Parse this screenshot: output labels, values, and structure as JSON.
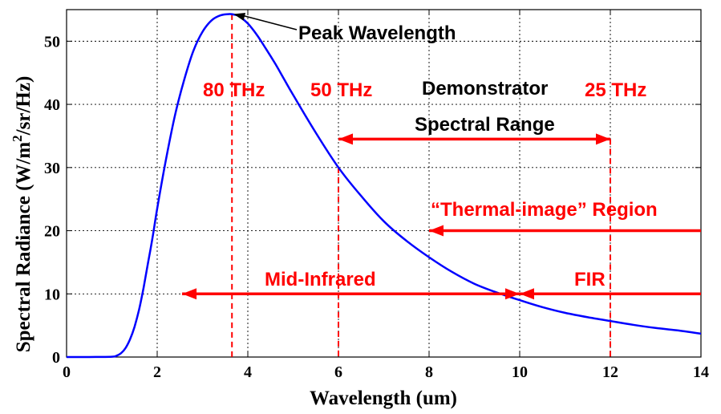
{
  "chart_data": {
    "type": "line",
    "title": "",
    "xlabel": "Wavelength (um)",
    "ylabel_main": "Spectral Radiance (W/m",
    "ylabel_sup": "2",
    "ylabel_tail": "/sr/Hz)",
    "xlim": [
      0,
      14
    ],
    "ylim": [
      0,
      55
    ],
    "xticks": [
      0,
      2,
      4,
      6,
      8,
      10,
      12,
      14
    ],
    "yticks": [
      0,
      10,
      20,
      30,
      40,
      50
    ],
    "grid": true,
    "series": [
      {
        "name": "Spectral Radiance",
        "color": "#0000ff",
        "x": [
          0,
          0.5,
          1.0,
          1.1,
          1.2,
          1.3,
          1.4,
          1.5,
          1.6,
          1.7,
          1.8,
          1.9,
          2.0,
          2.2,
          2.4,
          2.6,
          2.8,
          3.0,
          3.2,
          3.4,
          3.6,
          3.7,
          3.8,
          4.0,
          4.2,
          4.4,
          4.6,
          4.8,
          5.0,
          5.5,
          6.0,
          6.5,
          7.0,
          7.5,
          8.0,
          8.5,
          9.0,
          9.5,
          10.0,
          10.5,
          11.0,
          11.5,
          12.0,
          12.5,
          13.0,
          13.5,
          14.0
        ],
        "y": [
          0,
          0,
          0.05,
          0.2,
          0.6,
          1.4,
          2.8,
          4.8,
          7.5,
          11.0,
          15.0,
          19.0,
          23.5,
          31.5,
          38.5,
          44.0,
          48.5,
          51.5,
          53.3,
          54.1,
          54.3,
          54.2,
          54.0,
          52.8,
          51.0,
          48.8,
          46.5,
          44.0,
          41.5,
          35.5,
          30.0,
          25.5,
          21.5,
          18.4,
          15.8,
          13.5,
          11.6,
          10.2,
          9.0,
          7.9,
          7.0,
          6.3,
          5.7,
          5.1,
          4.6,
          4.2,
          3.7
        ]
      }
    ],
    "vlines": [
      {
        "name": "80 THz",
        "x": 3.65
      },
      {
        "name": "50 THz",
        "x": 6
      },
      {
        "name": "25 THz",
        "x": 12
      }
    ],
    "arrows": [
      {
        "name": "spectral-range",
        "label": "Spectral Range",
        "x_from": 6,
        "x_to": 12,
        "y": 34.5,
        "heads": "both"
      },
      {
        "name": "thermal-image-region",
        "label": "“Thermal-image” Region",
        "x_from": 14,
        "x_to": 8,
        "y": 20,
        "heads": "end"
      },
      {
        "name": "mid-infrared",
        "label": "Mid-Infrared",
        "x_from": 2.55,
        "x_to": 10,
        "y": 10,
        "heads": "both"
      },
      {
        "name": "fir",
        "label": "FIR",
        "x_from": 14,
        "x_to": 10,
        "y": 10,
        "heads": "end"
      }
    ],
    "annotations": {
      "peak": "Peak Wavelength",
      "f80": "80 THz",
      "f50": "50 THz",
      "f25": "25 THz",
      "demonstrator": "Demonstrator",
      "spectral_range": "Spectral Range",
      "thermal": "“Thermal-image” Region",
      "mid_ir": "Mid-Infrared",
      "fir": "FIR"
    },
    "peak_point": {
      "x": 3.65,
      "y": 54.3
    }
  },
  "colors": {
    "curve": "#0000ff",
    "annotation_red": "#ff0000",
    "text": "#000000"
  }
}
